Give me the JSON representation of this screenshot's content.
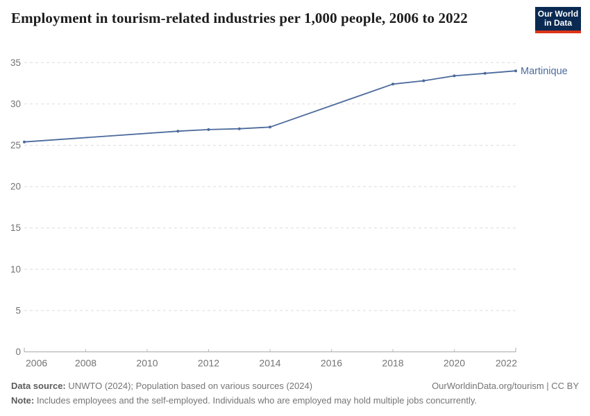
{
  "header": {
    "title": "Employment in tourism-related industries per 1,000 people, 2006 to 2022",
    "logo": {
      "line1": "Our World",
      "line2": "in Data",
      "bg_color": "#0a2a52",
      "accent_color": "#dc3418"
    }
  },
  "chart_data": {
    "type": "line",
    "title": "Employment in tourism-related industries per 1,000 people, 2006 to 2022",
    "series": [
      {
        "name": "Martinique",
        "color": "#4C6A9C",
        "x": [
          2006,
          2011,
          2012,
          2013,
          2014,
          2018,
          2019,
          2020,
          2021,
          2022
        ],
        "values": [
          25.4,
          26.7,
          26.9,
          27.0,
          27.2,
          32.4,
          32.8,
          33.4,
          33.7,
          34.0
        ]
      }
    ],
    "xlabel": "",
    "ylabel": "",
    "x_ticks": [
      2006,
      2008,
      2010,
      2012,
      2014,
      2016,
      2018,
      2020,
      2022
    ],
    "y_ticks": [
      0,
      5,
      10,
      15,
      20,
      25,
      30,
      35
    ],
    "xlim": [
      2006,
      2022
    ],
    "ylim": [
      0,
      35
    ],
    "grid": "horizontal-dashed",
    "legend_position": "end-of-line",
    "colors": {
      "line": "#4C6A9C",
      "gridline": "#dcdcdc",
      "axis_line": "#a8a8a8",
      "tick_label": "#737373"
    }
  },
  "footer": {
    "data_source_label": "Data source:",
    "data_source_text": " UNWTO (2024); Population based on various sources (2024)",
    "link_text": "OurWorldinData.org/tourism | CC BY",
    "note_label": "Note:",
    "note_text": " Includes employees and the self-employed. Individuals who are employed may hold multiple jobs concurrently."
  }
}
